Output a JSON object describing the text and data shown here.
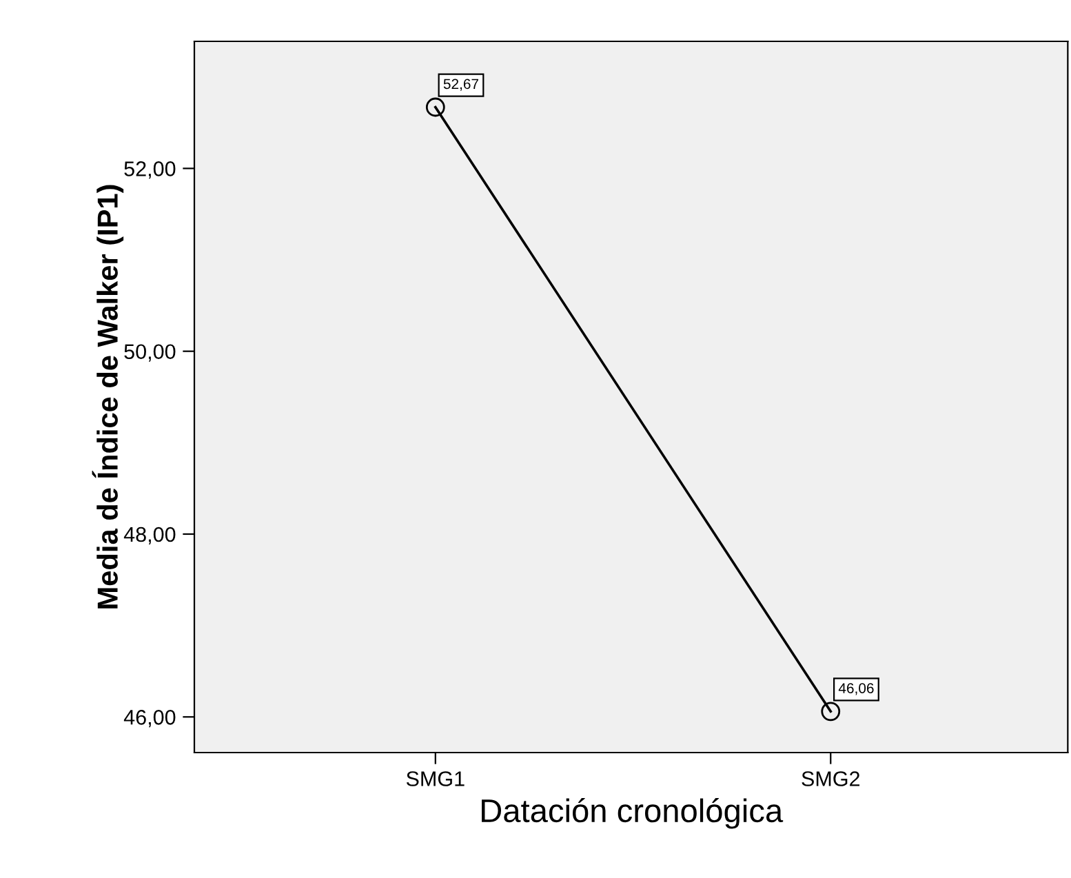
{
  "chart_data": {
    "type": "line",
    "xlabel": "Datación cronológica",
    "ylabel": "Media de Índice de Walker (IP1)",
    "categories": [
      "SMG1",
      "SMG2"
    ],
    "series": [
      {
        "color": "#000000",
        "values": [
          52.67,
          46.06
        ],
        "value_labels": [
          "52,67",
          "46,06"
        ]
      }
    ],
    "ylim": [
      45.61,
      53.39
    ],
    "yticks": [
      {
        "value": 46,
        "label": "46,00"
      },
      {
        "value": 48,
        "label": "48,00"
      },
      {
        "value": 50,
        "label": "50,00"
      },
      {
        "value": 52,
        "label": "52,00"
      }
    ],
    "marker": "circle",
    "line_style": "solid",
    "grid": false,
    "legend": false
  }
}
